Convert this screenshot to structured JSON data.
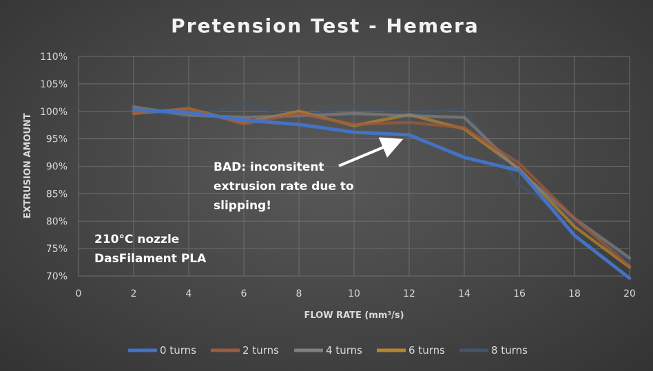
{
  "chart_data": {
    "type": "line",
    "title": "Pretension Test - Hemera",
    "xlabel": "FLOW RATE (mm³/s)",
    "ylabel": "EXTRUSION AMOUNT",
    "xlim": [
      0,
      20
    ],
    "ylim": [
      70,
      110
    ],
    "x_ticks": [
      "0",
      "2",
      "4",
      "6",
      "8",
      "10",
      "12",
      "14",
      "16",
      "18",
      "20"
    ],
    "y_ticks": [
      "70%",
      "75%",
      "80%",
      "85%",
      "90%",
      "95%",
      "100%",
      "105%",
      "110%"
    ],
    "grid": true,
    "legend_position": "bottom",
    "x": [
      2,
      4,
      6,
      8,
      10,
      12,
      14,
      16,
      18,
      20
    ],
    "series": [
      {
        "name": "0 turns",
        "color": "#4472c4",
        "values": [
          100.2,
          99.8,
          98.4,
          97.6,
          96.2,
          95.7,
          91.6,
          89.2,
          77.4,
          69.6
        ]
      },
      {
        "name": "2 turns",
        "color": "#9e5a3c",
        "values": [
          99.6,
          100.5,
          97.7,
          99.6,
          97.6,
          98.0,
          97.0,
          90.5,
          80.5,
          71.8
        ]
      },
      {
        "name": "4 turns",
        "color": "#7f7f7f",
        "values": [
          100.8,
          99.3,
          98.9,
          99.2,
          99.6,
          99.2,
          98.9,
          89.1,
          80.5,
          73.3
        ]
      },
      {
        "name": "6 turns",
        "color": "#b8862b",
        "values": [
          99.6,
          100.5,
          97.9,
          100.0,
          97.4,
          99.4,
          96.8,
          89.5,
          79.0,
          71.6
        ]
      },
      {
        "name": "8 turns",
        "color": "#44546a",
        "values": [
          100.5,
          99.0,
          101.3,
          99.0,
          101.0,
          99.7,
          100.5,
          86.5,
          80.0,
          72.8
        ]
      }
    ],
    "annotations": {
      "bad_line1": "BAD: inconsitent",
      "bad_line2": "extrusion rate due to",
      "bad_line3": "slipping!",
      "info_line1": "210°C nozzle",
      "info_line2": "DasFilament PLA"
    }
  }
}
